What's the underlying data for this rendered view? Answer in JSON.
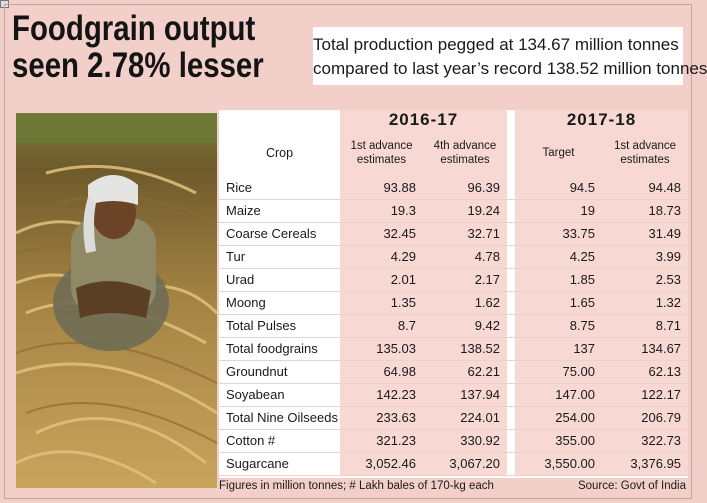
{
  "headline": {
    "line1": "Foodgrain output",
    "line2": "seen 2.78% lesser"
  },
  "subheading": {
    "line1": "Total production pegged at 134.67 million tonnes",
    "line2": "compared to last year’s record 138.52 million tonnes"
  },
  "table": {
    "year1": "2016-17",
    "year2": "2017-18",
    "crop_header": "Crop",
    "col1": "1st advance estimates",
    "col2": "4th advance estimates",
    "col3": "Target",
    "col4": "1st advance estimates",
    "rows": [
      {
        "crop": "Rice",
        "v1": "93.88",
        "v2": "96.39",
        "v3": "94.5",
        "v4": "94.48"
      },
      {
        "crop": "Maize",
        "v1": "19.3",
        "v2": "19.24",
        "v3": "19",
        "v4": "18.73"
      },
      {
        "crop": "Coarse Cereals",
        "v1": "32.45",
        "v2": "32.71",
        "v3": "33.75",
        "v4": "31.49"
      },
      {
        "crop": "Tur",
        "v1": "4.29",
        "v2": "4.78",
        "v3": "4.25",
        "v4": "3.99"
      },
      {
        "crop": "Urad",
        "v1": "2.01",
        "v2": "2.17",
        "v3": "1.85",
        "v4": "2.53"
      },
      {
        "crop": "Moong",
        "v1": "1.35",
        "v2": "1.62",
        "v3": "1.65",
        "v4": "1.32"
      },
      {
        "crop": "Total Pulses",
        "v1": "8.7",
        "v2": "9.42",
        "v3": "8.75",
        "v4": "8.71"
      },
      {
        "crop": "Total foodgrains",
        "v1": "135.03",
        "v2": "138.52",
        "v3": "137",
        "v4": "134.67"
      },
      {
        "crop": "Groundnut",
        "v1": "64.98",
        "v2": "62.21",
        "v3": "75.00",
        "v4": "62.13"
      },
      {
        "crop": "Soyabean",
        "v1": "142.23",
        "v2": "137.94",
        "v3": "147.00",
        "v4": "122.17"
      },
      {
        "crop": "Total Nine Oilseeds",
        "v1": "233.63",
        "v2": "224.01",
        "v3": "254.00",
        "v4": "206.79"
      },
      {
        "crop": "Cotton #",
        "v1": "321.23",
        "v2": "330.92",
        "v3": "355.00",
        "v4": "322.73"
      },
      {
        "crop": "Sugarcane",
        "v1": "3,052.46",
        "v2": "3,067.20",
        "v3": "3,550.00",
        "v4": "3,376.95"
      }
    ]
  },
  "footer": {
    "note": "Figures in million tonnes; # Lakh bales of 170-kg each",
    "source": "Source: Govt of India"
  },
  "colors": {
    "background": "#f2cfc9",
    "cell_pink": "#f7d8d3"
  }
}
